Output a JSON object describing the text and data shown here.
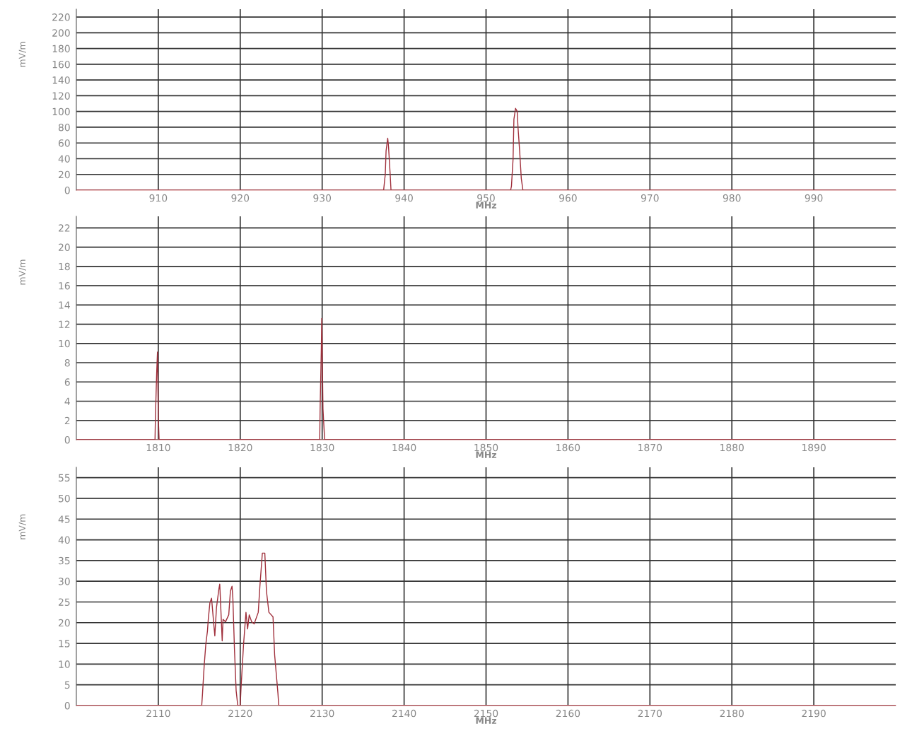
{
  "chart_data": [
    {
      "type": "line",
      "xlabel": "MHz",
      "ylabel": "mV/m",
      "xlim": [
        900,
        1000
      ],
      "ylim": [
        0,
        230
      ],
      "xticks": [
        910,
        920,
        930,
        940,
        950,
        960,
        970,
        980,
        990
      ],
      "yticks": [
        0,
        20,
        40,
        60,
        80,
        100,
        120,
        140,
        160,
        180,
        200,
        220
      ],
      "grid": true,
      "series": [
        {
          "color": "#a0303c",
          "x": [
            900,
            937.5,
            937.7,
            937.8,
            938.0,
            938.1,
            938.3,
            938.4,
            953.0,
            953.1,
            953.3,
            953.4,
            953.6,
            953.8,
            953.9,
            954.1,
            954.3,
            954.5,
            1000
          ],
          "values": [
            0,
            0,
            20,
            50,
            66,
            55,
            20,
            0,
            0,
            5,
            40,
            90,
            104,
            100,
            80,
            50,
            15,
            0,
            0
          ]
        }
      ]
    },
    {
      "type": "line",
      "xlabel": "MHz",
      "ylabel": "mV/m",
      "xlim": [
        1800,
        1900
      ],
      "ylim": [
        0,
        23.2
      ],
      "xticks": [
        1810,
        1820,
        1830,
        1840,
        1850,
        1860,
        1870,
        1880,
        1890
      ],
      "yticks": [
        0,
        2,
        4,
        6,
        8,
        10,
        12,
        14,
        16,
        18,
        20,
        22
      ],
      "grid": true,
      "series": [
        {
          "color": "#a0303c",
          "x": [
            1800,
            1809.6,
            1809.65,
            1809.8,
            1809.9,
            1810.0,
            1810.1,
            1829.7,
            1829.75,
            1829.9,
            1829.95,
            1830.0,
            1830.1,
            1830.3,
            1900
          ],
          "values": [
            0,
            0,
            2.3,
            6.9,
            9.1,
            2.3,
            0,
            0,
            3.2,
            9.6,
            12.6,
            9.6,
            3.2,
            0,
            0
          ]
        }
      ]
    },
    {
      "type": "line",
      "xlabel": "MHz",
      "ylabel": "mV/m",
      "xlim": [
        2100,
        2200
      ],
      "ylim": [
        0,
        57.5
      ],
      "xticks": [
        2110,
        2120,
        2130,
        2140,
        2150,
        2160,
        2170,
        2180,
        2190
      ],
      "yticks": [
        0,
        5,
        10,
        15,
        20,
        25,
        30,
        35,
        40,
        45,
        50,
        55
      ],
      "grid": true,
      "series": [
        {
          "color": "#a0303c",
          "x": [
            2100,
            2115.3,
            2115.4,
            2115.6,
            2115.8,
            2116.0,
            2116.1,
            2116.3,
            2116.5,
            2116.6,
            2116.8,
            2116.9,
            2117.1,
            2117.4,
            2117.5,
            2117.6,
            2117.8,
            2117.9,
            2118.2,
            2118.6,
            2118.8,
            2119.0,
            2119.1,
            2119.3,
            2119.5,
            2119.7,
            2120.0,
            2120.1,
            2120.4,
            2120.7,
            2120.9,
            2121.1,
            2121.4,
            2121.7,
            2122.2,
            2122.4,
            2122.7,
            2123.0,
            2123.2,
            2123.5,
            2124.0,
            2124.2,
            2124.6,
            2124.7,
            2200
          ],
          "values": [
            0,
            0,
            3,
            9.6,
            14.8,
            18,
            20.8,
            24.8,
            25.9,
            23.6,
            19,
            16.8,
            23.6,
            28.2,
            29.3,
            24.8,
            15.6,
            20.8,
            20.2,
            21.9,
            27.6,
            28.8,
            25.9,
            13.4,
            3.6,
            0,
            0,
            4.3,
            14.6,
            22.5,
            18.5,
            21.9,
            20.2,
            19.7,
            22.5,
            28.8,
            36.8,
            36.8,
            27.6,
            22.5,
            21.4,
            12.2,
            3,
            0,
            0
          ]
        }
      ]
    }
  ]
}
